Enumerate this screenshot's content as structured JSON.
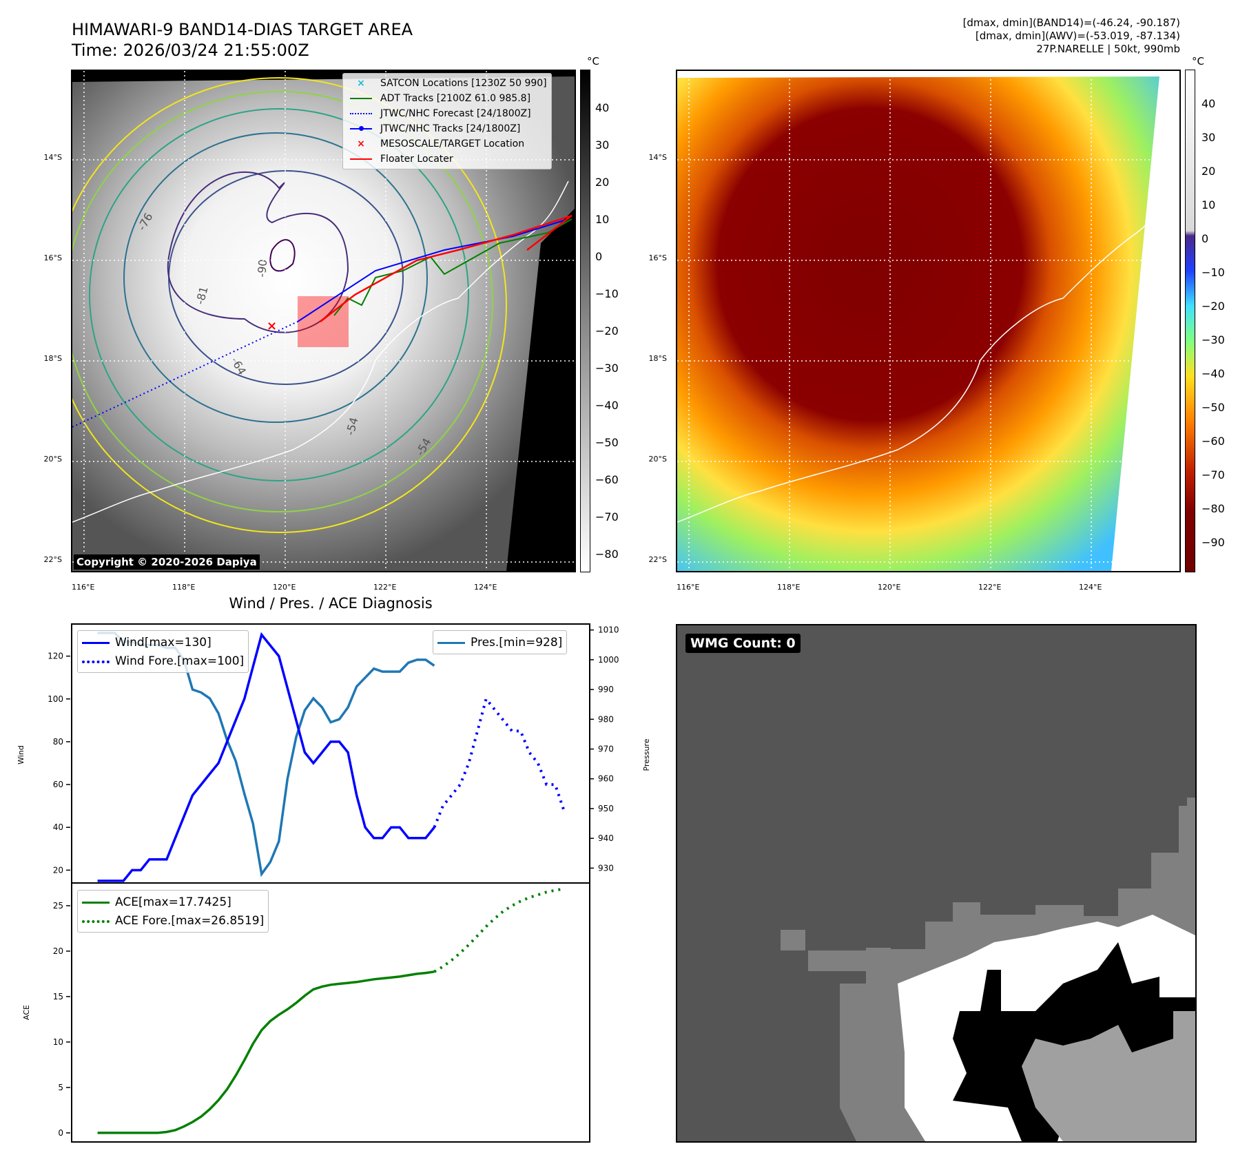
{
  "header": {
    "title_line1": "HIMAWARI-9 BAND14-DIAS TARGET AREA",
    "title_line2": "Time: 2026/03/24 21:55:00Z",
    "info_line1": "[dmax, dmin](BAND14)=(-46.24, -90.187)",
    "info_line2": "[dmax, dmin](AWV)=(-53.019, -87.134)",
    "info_line3": "27P.NARELLE | 50kt, 990mb"
  },
  "map": {
    "lat_labels": [
      "14°S",
      "16°S",
      "18°S",
      "20°S",
      "22°S"
    ],
    "lon_labels": [
      "116°E",
      "118°E",
      "120°E",
      "122°E",
      "124°E"
    ],
    "copyright": "Copyright © 2020-2026 Dapiya",
    "contour_labels": [
      "-76",
      "-81",
      "-90",
      "-64",
      "-54",
      "-54"
    ],
    "legend": [
      {
        "label": "SATCON Locations [1230Z 50 990]",
        "color": "#17becf",
        "style": "x"
      },
      {
        "label": "ADT Tracks [2100Z 61.0 985.8]",
        "color": "#008000",
        "style": "line"
      },
      {
        "label": "JTWC/NHC Forecast [24/1800Z]",
        "color": "#0000ff",
        "style": "dotted"
      },
      {
        "label": "JTWC/NHC Tracks [24/1800Z]",
        "color": "#0000ff",
        "style": "line-dot"
      },
      {
        "label": "MESOSCALE/TARGET Location",
        "color": "#ff0000",
        "style": "x"
      },
      {
        "label": "Floater Locater",
        "color": "#ff0000",
        "style": "line"
      }
    ],
    "colorbar_unit": "°C",
    "colorbar_gray_ticks": [
      "40",
      "30",
      "20",
      "10",
      "0",
      "−10",
      "−20",
      "−30",
      "−40",
      "−50",
      "−60",
      "−70",
      "−80"
    ],
    "colorbar_color_ticks": [
      "40",
      "30",
      "20",
      "10",
      "0",
      "−10",
      "−20",
      "−30",
      "−40",
      "−50",
      "−60",
      "−70",
      "−80",
      "−90"
    ]
  },
  "diagnosis": {
    "title": "Wind / Pres. / ACE Diagnosis",
    "wind_axis_label": "Wind",
    "pressure_axis_label": "Pressure",
    "ace_axis_label": "ACE",
    "legend_wind": "Wind[max=130]",
    "legend_wind_fore": "Wind Fore.[max=100]",
    "legend_pres": "Pres.[min=928]",
    "legend_ace": "ACE[max=17.7425]",
    "legend_ace_fore": "ACE Fore.[max=26.8519]",
    "wind_ticks": [
      "120",
      "100",
      "80",
      "60",
      "40",
      "20"
    ],
    "pres_ticks": [
      "1010",
      "1000",
      "990",
      "980",
      "970",
      "960",
      "950",
      "940",
      "930"
    ],
    "ace_ticks": [
      "25",
      "20",
      "15",
      "10",
      "5",
      "0"
    ]
  },
  "wmg": {
    "label": "WMG Count: 0"
  },
  "chart_data": [
    {
      "type": "line",
      "title": "Wind / Pres. / ACE Diagnosis",
      "ylabel": "Wind",
      "ylim": [
        14,
        135
      ],
      "series": [
        {
          "name": "Wind[max=130]",
          "x": [
            0,
            1,
            2,
            3,
            4,
            5,
            6,
            7,
            8,
            9,
            10,
            11,
            12,
            13,
            14,
            15,
            16,
            17,
            18,
            19,
            20,
            21,
            22,
            23,
            24,
            25,
            26,
            27,
            28,
            29,
            30,
            31,
            32,
            33,
            34,
            35,
            36,
            37,
            38,
            39
          ],
          "values": [
            15,
            15,
            15,
            15,
            20,
            20,
            25,
            25,
            25,
            35,
            45,
            55,
            60,
            65,
            70,
            80,
            90,
            100,
            115,
            130,
            125,
            120,
            105,
            90,
            75,
            70,
            75,
            80,
            80,
            75,
            55,
            40,
            35,
            35,
            40,
            40,
            35,
            35,
            35,
            40
          ]
        },
        {
          "name": "Wind Fore.[max=100]",
          "x": [
            39,
            40,
            41,
            42,
            43,
            44,
            45,
            46,
            47,
            48,
            49,
            50,
            51,
            52,
            53,
            54
          ],
          "values": [
            40,
            50,
            55,
            60,
            70,
            85,
            100,
            95,
            90,
            85,
            85,
            75,
            70,
            60,
            60,
            48
          ]
        }
      ]
    },
    {
      "type": "line",
      "ylabel": "Pressure",
      "ylim": [
        925,
        1012
      ],
      "series": [
        {
          "name": "Pres.[min=928]",
          "x": [
            0,
            1,
            2,
            3,
            4,
            5,
            6,
            7,
            8,
            9,
            10,
            11,
            12,
            13,
            14,
            15,
            16,
            17,
            18,
            19,
            20,
            21,
            22,
            23,
            24,
            25,
            26,
            27,
            28,
            29,
            30,
            31,
            32,
            33,
            34,
            35,
            36,
            37,
            38,
            39
          ],
          "values": [
            1009,
            1009,
            1009,
            1006,
            1006,
            1005,
            1005,
            1005,
            1004,
            1004,
            1000,
            990,
            989,
            987,
            982,
            973,
            966,
            955,
            945,
            928,
            932,
            939,
            960,
            974,
            983,
            987,
            984,
            979,
            980,
            984,
            991,
            994,
            997,
            996,
            996,
            996,
            999,
            1000,
            1000,
            998
          ]
        }
      ]
    },
    {
      "type": "line",
      "ylabel": "ACE",
      "ylim": [
        -1,
        27.5
      ],
      "series": [
        {
          "name": "ACE[max=17.7425]",
          "x": [
            0,
            1,
            2,
            3,
            4,
            5,
            6,
            7,
            8,
            9,
            10,
            11,
            12,
            13,
            14,
            15,
            16,
            17,
            18,
            19,
            20,
            21,
            22,
            23,
            24,
            25,
            26,
            27,
            28,
            29,
            30,
            31,
            32,
            33,
            34,
            35,
            36,
            37,
            38,
            39
          ],
          "values": [
            0,
            0,
            0,
            0,
            0,
            0,
            0,
            0,
            0.1,
            0.3,
            0.7,
            1.2,
            1.8,
            2.6,
            3.6,
            4.8,
            6.3,
            8.0,
            9.8,
            11.3,
            12.3,
            13.0,
            13.6,
            14.3,
            15.1,
            15.8,
            16.1,
            16.3,
            16.4,
            16.5,
            16.6,
            16.75,
            16.9,
            17.0,
            17.1,
            17.2,
            17.35,
            17.5,
            17.6,
            17.74
          ]
        },
        {
          "name": "ACE Fore.[max=26.8519]",
          "x": [
            39,
            40,
            41,
            42,
            43,
            44,
            45,
            46,
            47,
            48,
            49,
            50,
            51,
            52,
            53,
            54
          ],
          "values": [
            17.74,
            18.3,
            19.0,
            19.8,
            20.7,
            21.7,
            22.7,
            23.6,
            24.4,
            25.0,
            25.5,
            25.9,
            26.2,
            26.5,
            26.7,
            26.85
          ]
        }
      ]
    }
  ]
}
